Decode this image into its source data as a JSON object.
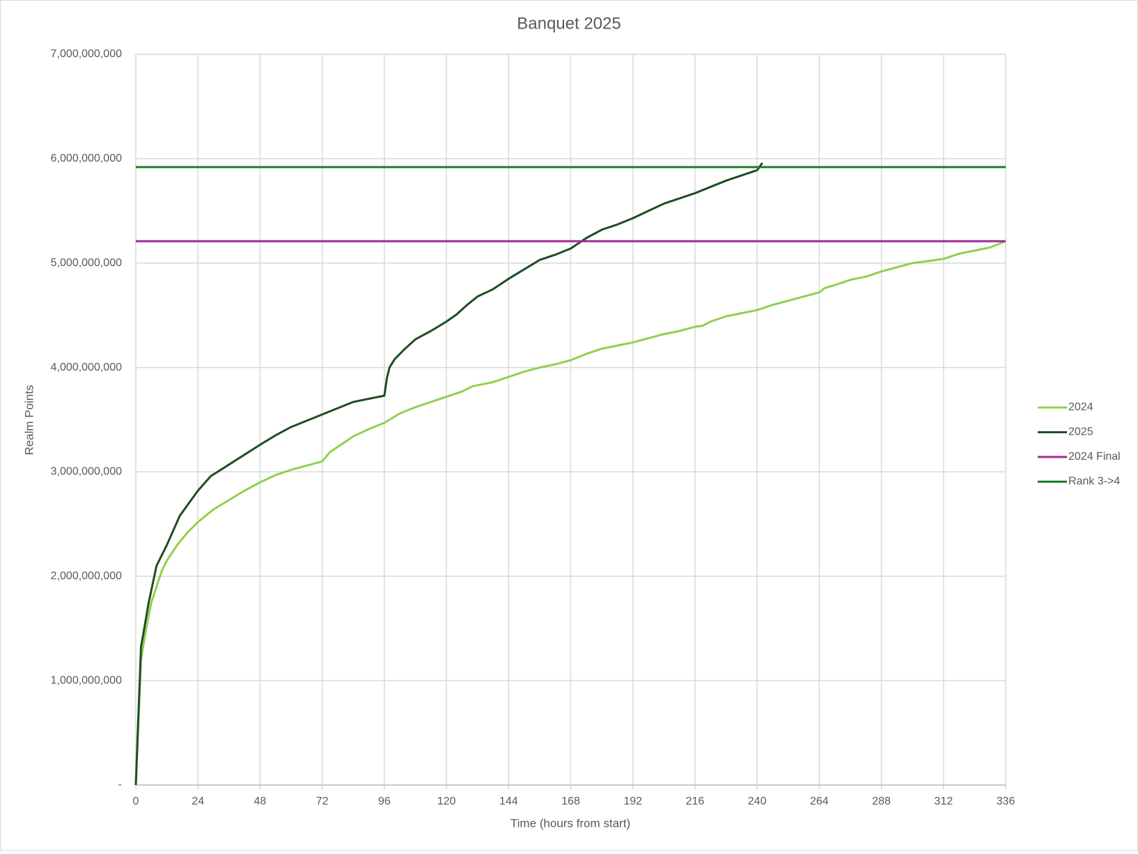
{
  "chart_data": {
    "type": "line",
    "title": "Banquet 2025",
    "x_label": "Time (hours from start)",
    "y_label": "Realm Points",
    "xlim": [
      0,
      336
    ],
    "xticks": [
      0,
      24,
      48,
      72,
      96,
      120,
      144,
      168,
      192,
      216,
      240,
      264,
      288,
      312,
      336
    ],
    "ylim": [
      0,
      7000000000.0
    ],
    "yticks": [
      {
        "value": 0,
        "label": "-"
      },
      {
        "value": 1000000000.0,
        "label": "1,000,000,000"
      },
      {
        "value": 2000000000.0,
        "label": "2,000,000,000"
      },
      {
        "value": 3000000000.0,
        "label": "3,000,000,000"
      },
      {
        "value": 4000000000.0,
        "label": "4,000,000,000"
      },
      {
        "value": 5000000000.0,
        "label": "5,000,000,000"
      },
      {
        "value": 6000000000.0,
        "label": "6,000,000,000"
      },
      {
        "value": 7000000000.0,
        "label": "7,000,000,000"
      }
    ],
    "grid": true,
    "legend": "right",
    "series": [
      {
        "name": "2024",
        "color": "#8fd14f",
        "x": [
          0,
          2,
          4,
          6,
          8,
          10,
          12,
          16,
          20,
          24,
          30,
          36,
          42,
          48,
          54,
          60,
          66,
          72,
          73,
          75,
          78,
          84,
          90,
          96,
          102,
          108,
          114,
          120,
          126,
          130,
          138,
          144,
          150,
          156,
          162,
          168,
          174,
          180,
          186,
          192,
          198,
          204,
          210,
          216,
          219,
          222,
          228,
          234,
          240,
          246,
          252,
          258,
          264,
          266,
          270,
          276,
          282,
          288,
          294,
          300,
          306,
          312,
          318,
          324,
          330,
          336
        ],
        "values": [
          0,
          1200000000.0,
          1500000000.0,
          1750000000.0,
          1900000000.0,
          2050000000.0,
          2150000000.0,
          2300000000.0,
          2420000000.0,
          2520000000.0,
          2640000000.0,
          2730000000.0,
          2820000000.0,
          2900000000.0,
          2970000000.0,
          3020000000.0,
          3060000000.0,
          3100000000.0,
          3130000000.0,
          3190000000.0,
          3240000000.0,
          3340000000.0,
          3410000000.0,
          3470000000.0,
          3560000000.0,
          3620000000.0,
          3670000000.0,
          3720000000.0,
          3770000000.0,
          3820000000.0,
          3860000000.0,
          3910000000.0,
          3960000000.0,
          4000000000.0,
          4030000000.0,
          4070000000.0,
          4130000000.0,
          4180000000.0,
          4210000000.0,
          4240000000.0,
          4280000000.0,
          4320000000.0,
          4350000000.0,
          4390000000.0,
          4400000000.0,
          4440000000.0,
          4490000000.0,
          4520000000.0,
          4550000000.0,
          4600000000.0,
          4640000000.0,
          4680000000.0,
          4720000000.0,
          4760000000.0,
          4790000000.0,
          4840000000.0,
          4870000000.0,
          4920000000.0,
          4960000000.0,
          5000000000.0,
          5020000000.0,
          5040000000.0,
          5090000000.0,
          5120000000.0,
          5150000000.0,
          5210000000.0
        ]
      },
      {
        "name": "2025",
        "color": "#1e4d22",
        "x": [
          0,
          2,
          5,
          8,
          12,
          17,
          24,
          29,
          36,
          48,
          54,
          60,
          66,
          72,
          78,
          84,
          90,
          96,
          97,
          98,
          100,
          104,
          108,
          114,
          120,
          124,
          128,
          132,
          138,
          144,
          150,
          156,
          162,
          168,
          174,
          180,
          186,
          192,
          198,
          204,
          210,
          216,
          222,
          228,
          234,
          240,
          242
        ],
        "values": [
          0,
          1320000000.0,
          1750000000.0,
          2100000000.0,
          2300000000.0,
          2580000000.0,
          2820000000.0,
          2960000000.0,
          3070000000.0,
          3260000000.0,
          3350000000.0,
          3430000000.0,
          3490000000.0,
          3550000000.0,
          3610000000.0,
          3670000000.0,
          3700000000.0,
          3730000000.0,
          3900000000.0,
          4000000000.0,
          4080000000.0,
          4180000000.0,
          4270000000.0,
          4350000000.0,
          4440000000.0,
          4510000000.0,
          4600000000.0,
          4680000000.0,
          4750000000.0,
          4850000000.0,
          4940000000.0,
          5030000000.0,
          5080000000.0,
          5140000000.0,
          5240000000.0,
          5320000000.0,
          5370000000.0,
          5430000000.0,
          5500000000.0,
          5570000000.0,
          5620000000.0,
          5670000000.0,
          5730000000.0,
          5790000000.0,
          5840000000.0,
          5890000000.0,
          5960000000.0
        ]
      },
      {
        "name": "2024 Final",
        "color": "#a02b93",
        "x": [
          0,
          336
        ],
        "values": [
          5210000000.0,
          5210000000.0
        ]
      },
      {
        "name": "Rank 3->4",
        "color": "#217a2b",
        "x": [
          0,
          336
        ],
        "values": [
          5920000000.0,
          5920000000.0
        ]
      }
    ]
  }
}
